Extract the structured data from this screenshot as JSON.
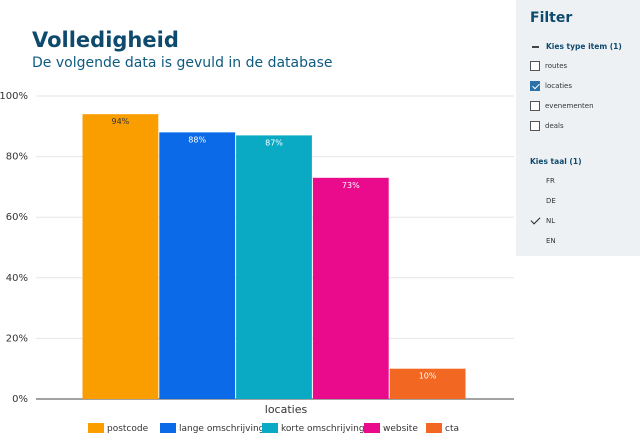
{
  "header": {
    "title": "Volledigheid",
    "subtitle": "De volgende data is gevuld in de database"
  },
  "filter": {
    "title": "Filter",
    "type_group": {
      "label": "Kies type item (1)",
      "options": [
        {
          "label": "routes",
          "checked": false
        },
        {
          "label": "locaties",
          "checked": true
        },
        {
          "label": "evenementen",
          "checked": false
        },
        {
          "label": "deals",
          "checked": false
        }
      ]
    },
    "lang_group": {
      "label": "Kies taal (1)",
      "options": [
        {
          "label": "FR",
          "checked": false
        },
        {
          "label": "DE",
          "checked": false
        },
        {
          "label": "NL",
          "checked": true
        },
        {
          "label": "EN",
          "checked": false
        }
      ]
    }
  },
  "chart_data": {
    "type": "bar",
    "categories": [
      "locaties"
    ],
    "series": [
      {
        "name": "postcode",
        "values": [
          94
        ],
        "color": "#fa9e00"
      },
      {
        "name": "lange omschrijving",
        "values": [
          88
        ],
        "color": "#0b6ae8"
      },
      {
        "name": "korte omschrijving",
        "values": [
          87
        ],
        "color": "#0aaac4"
      },
      {
        "name": "website",
        "values": [
          73
        ],
        "color": "#ea0a8c"
      },
      {
        "name": "cta",
        "values": [
          10
        ],
        "color": "#f26722"
      }
    ],
    "data_labels": [
      "94%",
      "88%",
      "87%",
      "73%",
      "10%"
    ],
    "y_ticks": [
      "0%",
      "20%",
      "40%",
      "60%",
      "80%",
      "100%"
    ],
    "ylim": [
      0,
      100
    ],
    "xlabel": "locaties",
    "grid": true,
    "legend": "bottom"
  }
}
